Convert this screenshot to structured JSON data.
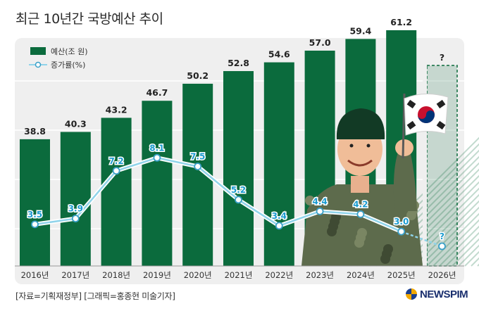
{
  "title": "최근 10년간 국방예산 추이",
  "source": "[자료=기획재정부] [그래픽=홍종현 미술기자]",
  "logo": {
    "text": "NEWSPIM"
  },
  "colors": {
    "bar": "#0b6b3d",
    "line": "#8fd3ea",
    "marker_edge": "#3aa0c8",
    "panel": "#efefef"
  },
  "chart_data": {
    "type": "bar",
    "categories": [
      "2016년",
      "2017년",
      "2018년",
      "2019년",
      "2020년",
      "2021년",
      "2022년",
      "2023년",
      "2024년",
      "2025년",
      "2026년"
    ],
    "legend": {
      "position": "top-left"
    },
    "series": [
      {
        "name": "예산(조 원)",
        "type": "bar",
        "values": [
          38.8,
          40.3,
          43.2,
          46.7,
          50.2,
          52.8,
          54.6,
          57.0,
          59.4,
          61.2,
          null
        ],
        "labels": [
          "38.8",
          "40.3",
          "43.2",
          "46.7",
          "50.2",
          "52.8",
          "54.6",
          "57.0",
          "59.4",
          "61.2",
          "?"
        ]
      },
      {
        "name": "증가률(%)",
        "type": "line",
        "values": [
          3.5,
          3.9,
          7.2,
          8.1,
          7.5,
          5.2,
          3.4,
          4.4,
          4.2,
          3.0,
          null
        ],
        "labels": [
          "3.5",
          "3.9",
          "7.2",
          "8.1",
          "7.5",
          "5.2",
          "3.4",
          "4.4",
          "4.2",
          "3.0",
          "?"
        ]
      }
    ],
    "illustration": {
      "flag_icon": "korean-flag-icon",
      "figure": "soldier-illustration"
    }
  }
}
